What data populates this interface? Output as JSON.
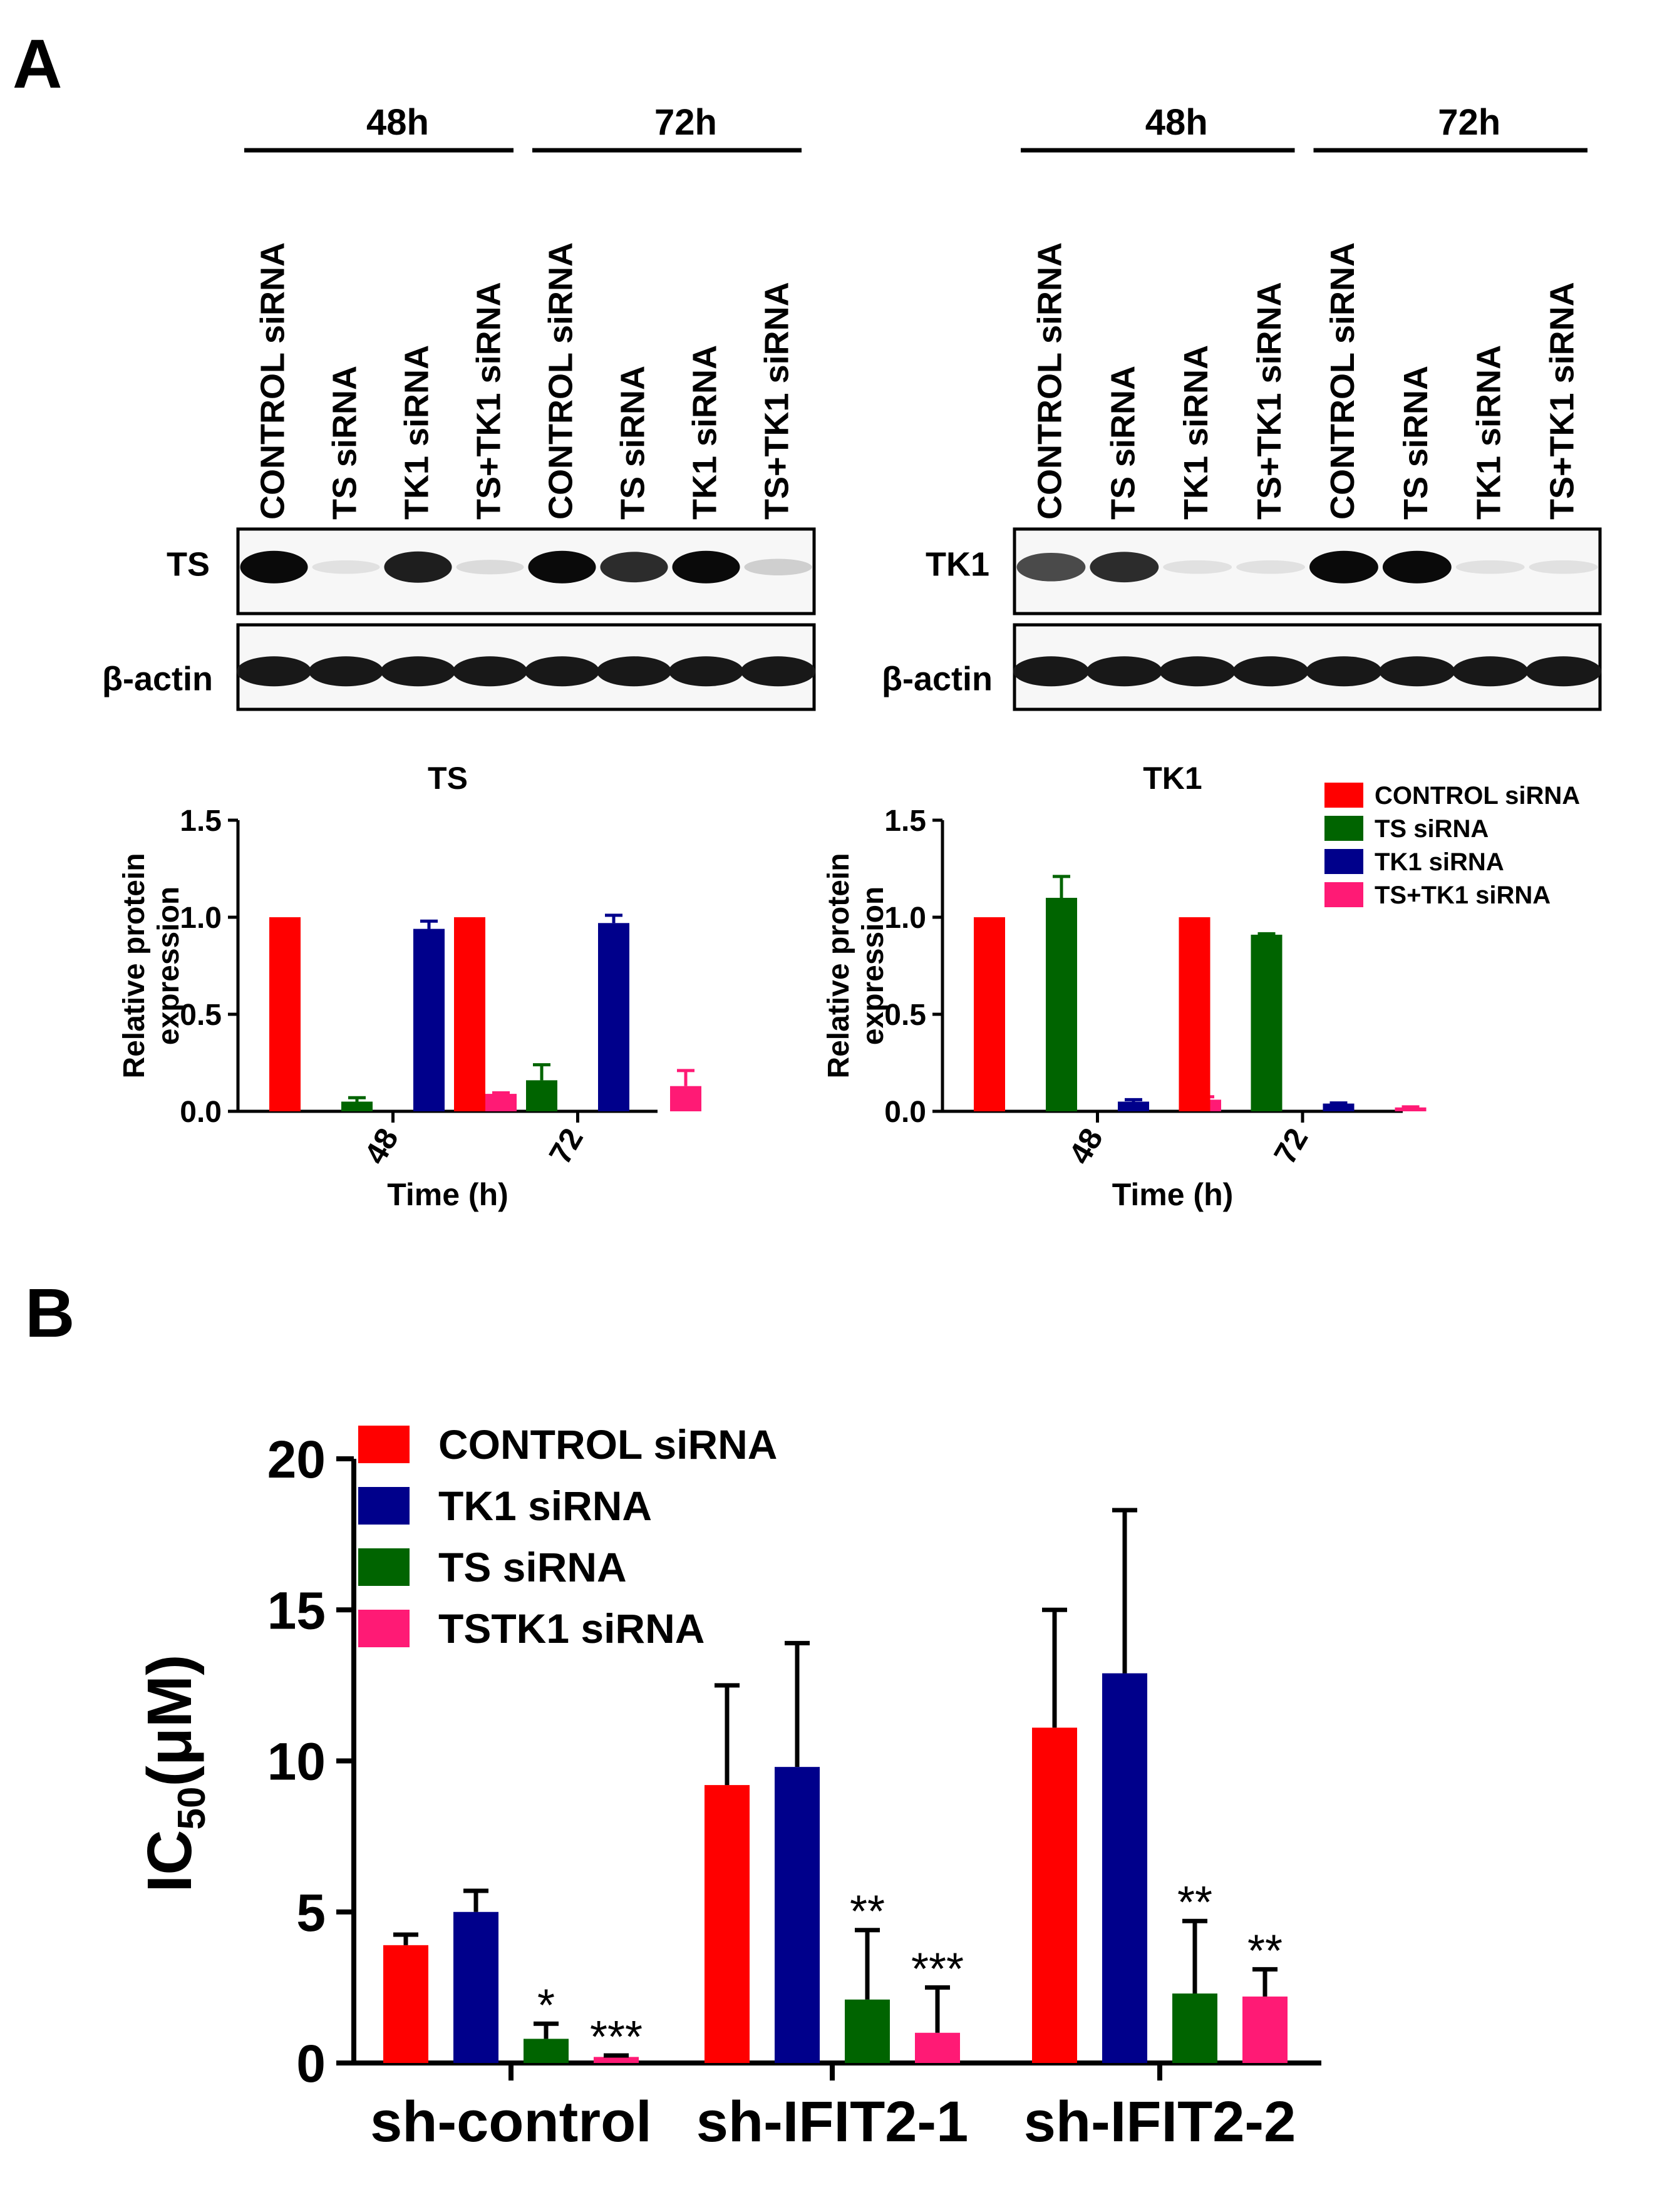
{
  "panel_labels": {
    "a": "A",
    "b": "B"
  },
  "blot_ts": {
    "groups": [
      {
        "label": "48h",
        "lanes": [
          "CONTROL siRNA",
          "TS  siRNA",
          "TK1 siRNA",
          "TS+TK1 siRNA"
        ]
      },
      {
        "label": "72h",
        "lanes": [
          "CONTROL siRNA",
          "TS  siRNA",
          "TK1 siRNA",
          "TS+TK1 siRNA"
        ]
      }
    ],
    "row_labels": [
      "TS",
      "β-actin"
    ],
    "target_band_intensity": [
      1.0,
      0.05,
      0.94,
      0.1,
      1.0,
      0.9,
      1.0,
      0.2
    ],
    "actin_band_intensity": [
      1,
      1,
      1,
      1,
      1,
      1,
      1,
      1
    ]
  },
  "blot_tk1": {
    "groups": [
      {
        "label": "48h",
        "lanes": [
          "CONTROL siRNA",
          "TS  siRNA",
          "TK1 siRNA",
          "TS+TK1 siRNA"
        ]
      },
      {
        "label": "72h",
        "lanes": [
          "CONTROL siRNA",
          "TS  siRNA",
          "TK1 siRNA",
          "TS+TK1 siRNA"
        ]
      }
    ],
    "row_labels": [
      "TK1",
      "β-actin"
    ],
    "target_band_intensity": [
      0.8,
      0.9,
      0.05,
      0.05,
      1.0,
      1.0,
      0.05,
      0.05
    ],
    "actin_band_intensity": [
      1,
      1,
      1,
      1,
      1,
      1,
      1,
      1
    ]
  },
  "colors": {
    "red": "#ff0000",
    "green": "#006400",
    "navy": "#00008b",
    "pink": "#ff1a75"
  },
  "chart_data": [
    {
      "type": "bar",
      "title": "TS",
      "xlabel": "Time   (h)",
      "ylabel": [
        "Relative protein",
        "expression"
      ],
      "categories": [
        "48",
        "72"
      ],
      "ylim": [
        0,
        1.5
      ],
      "yticks": [
        "0.0",
        "0.5",
        "1.0",
        "1.5"
      ],
      "series": [
        {
          "name": "CONTROL siRNA",
          "color": "#ff0000",
          "values": [
            1.0,
            1.0
          ],
          "errors": [
            0,
            0
          ]
        },
        {
          "name": "TS siRNA",
          "color": "#006400",
          "values": [
            0.05,
            0.16
          ],
          "errors": [
            0.02,
            0.08
          ]
        },
        {
          "name": "TK1 siRNA",
          "color": "#00008b",
          "values": [
            0.94,
            0.97
          ],
          "errors": [
            0.04,
            0.04
          ]
        },
        {
          "name": "TS+TK1 siRNA",
          "color": "#ff1a75",
          "values": [
            0.09,
            0.13
          ],
          "errors": [
            0.005,
            0.08
          ]
        }
      ]
    },
    {
      "type": "bar",
      "title": "TK1",
      "xlabel": "Time   (h)",
      "ylabel": [
        "Relative protein",
        "expression"
      ],
      "categories": [
        "48",
        "72"
      ],
      "ylim": [
        0,
        1.5
      ],
      "yticks": [
        "0.0",
        "0.5",
        "1.0",
        "1.5"
      ],
      "legend": "top-right",
      "series": [
        {
          "name": "CONTROL siRNA",
          "color": "#ff0000",
          "values": [
            1.0,
            1.0
          ],
          "errors": [
            0,
            0
          ]
        },
        {
          "name": "TS siRNA",
          "color": "#006400",
          "values": [
            1.1,
            0.91
          ],
          "errors": [
            0.11,
            0.005
          ]
        },
        {
          "name": "TK1 siRNA",
          "color": "#00008b",
          "values": [
            0.05,
            0.04
          ],
          "errors": [
            0.01,
            0.003
          ]
        },
        {
          "name": "TS+TK1 siRNA",
          "color": "#ff1a75",
          "values": [
            0.06,
            0.02
          ],
          "errors": [
            0.015,
            0.003
          ]
        }
      ]
    },
    {
      "type": "bar",
      "ylabel": "IC50(μM)",
      "categories": [
        "sh-control",
        "sh-IFIT2-1",
        "sh-IFIT2-2"
      ],
      "ylim": [
        0,
        20
      ],
      "yticks": [
        "0",
        "5",
        "10",
        "15",
        "20"
      ],
      "legend": "top-left",
      "series": [
        {
          "name": "CONTROL siRNA",
          "color": "#ff0000",
          "values": [
            3.9,
            9.2,
            11.1
          ],
          "errors": [
            0.35,
            3.3,
            3.9
          ],
          "sig": [
            "",
            "",
            ""
          ]
        },
        {
          "name": "TK1 siRNA",
          "color": "#00008b",
          "values": [
            5.0,
            9.8,
            12.9
          ],
          "errors": [
            0.7,
            4.1,
            5.4
          ],
          "sig": [
            "",
            "",
            ""
          ]
        },
        {
          "name": "TS siRNA",
          "color": "#006400",
          "values": [
            0.8,
            2.1,
            2.3
          ],
          "errors": [
            0.5,
            2.3,
            2.4
          ],
          "sig": [
            "*",
            "**",
            "**"
          ]
        },
        {
          "name": "TSTK1 siRNA",
          "color": "#ff1a75",
          "values": [
            0.2,
            1.0,
            2.2
          ],
          "errors": [
            0.05,
            1.5,
            0.9
          ],
          "sig": [
            "***",
            "***",
            "**"
          ]
        }
      ]
    }
  ]
}
